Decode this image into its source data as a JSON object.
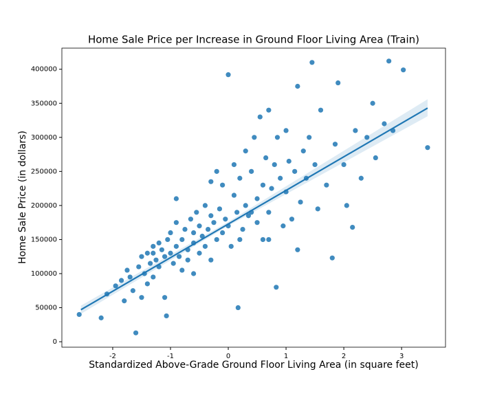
{
  "chart_data": {
    "type": "scatter",
    "title": "Home Sale Price per Increase in Ground Floor Living Area (Train)",
    "x_label": "Standardized Above-Grade Ground Floor Living Area (in square feet)",
    "y_label": "Home Sale Price (in dollars)",
    "color": "#1f77b4",
    "grid": false,
    "xlim": [
      -2.88,
      3.76
    ],
    "ylim": [
      -8000,
      431000
    ],
    "xticks": [
      -2,
      -1,
      0,
      1,
      2,
      3
    ],
    "yticks": [
      0,
      50000,
      100000,
      150000,
      200000,
      250000,
      300000,
      350000,
      400000
    ],
    "x": [
      -2.58,
      -2.2,
      -2.1,
      -1.95,
      -1.85,
      -1.8,
      -1.75,
      -1.7,
      -1.65,
      -1.6,
      -1.55,
      -1.5,
      -1.5,
      -1.45,
      -1.4,
      -1.4,
      -1.35,
      -1.3,
      -1.3,
      -1.25,
      -1.2,
      -1.2,
      -1.15,
      -1.1,
      -1.1,
      -1.05,
      -1.07,
      -1.0,
      -1.0,
      -0.95,
      -0.9,
      -0.9,
      -0.85,
      -0.8,
      -0.8,
      -0.75,
      -0.7,
      -0.7,
      -0.65,
      -0.6,
      -0.6,
      -0.55,
      -0.5,
      -0.5,
      -0.45,
      -0.4,
      -0.4,
      -0.35,
      -0.3,
      -0.3,
      -0.25,
      -0.2,
      -0.2,
      -0.15,
      -0.1,
      -0.1,
      -0.05,
      0,
      0,
      0.05,
      0.1,
      0.1,
      0.15,
      0.17,
      0.2,
      0.25,
      0.3,
      0.3,
      0.35,
      0.4,
      0.45,
      0.5,
      0.5,
      0.55,
      0.6,
      0.6,
      0.65,
      0.7,
      0.7,
      0.75,
      0.8,
      0.83,
      0.85,
      0.9,
      0.95,
      1.0,
      1.0,
      1.05,
      1.1,
      1.15,
      1.2,
      1.25,
      1.3,
      1.35,
      1.4,
      1.45,
      1.5,
      1.55,
      1.6,
      1.7,
      1.8,
      1.85,
      1.9,
      2.0,
      2.05,
      2.15,
      2.2,
      2.3,
      2.4,
      2.5,
      2.55,
      2.7,
      2.78,
      2.85,
      3.03,
      3.45,
      -0.9,
      -0.3,
      0.4,
      0.7,
      1.2,
      -1.3,
      -0.6,
      0.2
    ],
    "y": [
      40000,
      35000,
      70000,
      82000,
      90000,
      60000,
      105000,
      95000,
      75000,
      13000,
      110000,
      65000,
      125000,
      100000,
      130000,
      85000,
      115000,
      140000,
      95000,
      120000,
      145000,
      110000,
      135000,
      125000,
      65000,
      150000,
      38000,
      130000,
      160000,
      115000,
      140000,
      175000,
      125000,
      150000,
      105000,
      165000,
      135000,
      120000,
      180000,
      145000,
      160000,
      190000,
      130000,
      170000,
      155000,
      200000,
      140000,
      165000,
      185000,
      120000,
      175000,
      250000,
      150000,
      195000,
      160000,
      230000,
      180000,
      392000,
      170000,
      140000,
      215000,
      260000,
      190000,
      50000,
      240000,
      165000,
      280000,
      200000,
      185000,
      250000,
      300000,
      210000,
      175000,
      330000,
      230000,
      150000,
      270000,
      190000,
      340000,
      225000,
      260000,
      80000,
      300000,
      240000,
      170000,
      220000,
      310000,
      265000,
      180000,
      250000,
      375000,
      205000,
      280000,
      240000,
      300000,
      410000,
      260000,
      195000,
      340000,
      230000,
      123000,
      290000,
      380000,
      260000,
      200000,
      168000,
      310000,
      240000,
      300000,
      350000,
      270000,
      320000,
      412000,
      310000,
      399000,
      285000,
      210000,
      235000,
      190000,
      150000,
      135000,
      130000,
      100000,
      150000
    ],
    "regression": {
      "x": [
        -2.55,
        3.45
      ],
      "y": [
        47000,
        343000
      ]
    },
    "confidence_band": {
      "x": [
        -2.55,
        0,
        3.45
      ],
      "lower": [
        41000,
        170000,
        331000
      ],
      "upper": [
        53000,
        176000,
        356000
      ]
    }
  }
}
